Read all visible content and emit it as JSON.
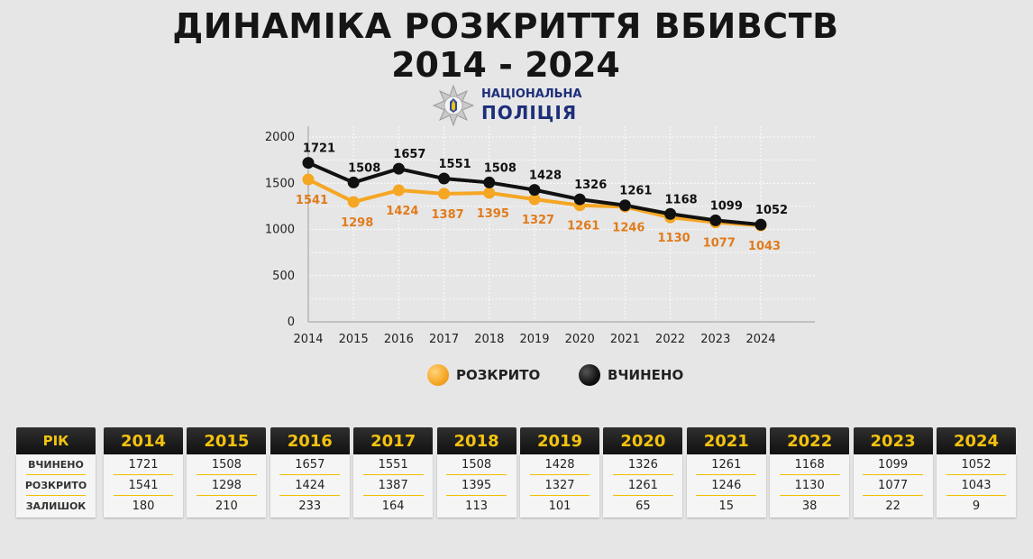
{
  "title": {
    "line1": "ДИНАМІКА РОЗКРИТТЯ ВБИВСТВ",
    "line2": "2014 - 2024"
  },
  "logo": {
    "line1": "НАЦІОНАЛЬНА",
    "line2": "ПОЛІЦІЯ"
  },
  "chart_data": {
    "type": "line",
    "x": [
      "2014",
      "2015",
      "2016",
      "2017",
      "2018",
      "2019",
      "2020",
      "2021",
      "2022",
      "2023",
      "2024"
    ],
    "series": [
      {
        "name": "ВЧИНЕНО",
        "color": "#111111",
        "values": [
          1721,
          1508,
          1657,
          1551,
          1508,
          1428,
          1326,
          1261,
          1168,
          1099,
          1052
        ]
      },
      {
        "name": "РОЗКРИТО",
        "color": "#f5a623",
        "label_color": "#e07b1c",
        "values": [
          1541,
          1298,
          1424,
          1387,
          1395,
          1327,
          1261,
          1246,
          1130,
          1077,
          1043
        ]
      }
    ],
    "yticks": [
      0,
      500,
      1000,
      1500,
      2000
    ],
    "ylim": [
      0,
      2000
    ],
    "grid": true,
    "legend": "bottom"
  },
  "legend": [
    {
      "label": "РОЗКРИТО",
      "color": "#f5a623"
    },
    {
      "label": "ВЧИНЕНО",
      "color": "#111111"
    }
  ],
  "table": {
    "header_label": "РІК",
    "row_labels": [
      "ВЧИНЕНО",
      "РОЗКРИТО",
      "ЗАЛИШОК"
    ],
    "columns": [
      {
        "year": "2014",
        "committed": "1721",
        "solved": "1541",
        "remaining": "180"
      },
      {
        "year": "2015",
        "committed": "1508",
        "solved": "1298",
        "remaining": "210"
      },
      {
        "year": "2016",
        "committed": "1657",
        "solved": "1424",
        "remaining": "233"
      },
      {
        "year": "2017",
        "committed": "1551",
        "solved": "1387",
        "remaining": "164"
      },
      {
        "year": "2018",
        "committed": "1508",
        "solved": "1395",
        "remaining": "113"
      },
      {
        "year": "2019",
        "committed": "1428",
        "solved": "1327",
        "remaining": "101"
      },
      {
        "year": "2020",
        "committed": "1326",
        "solved": "1261",
        "remaining": "65"
      },
      {
        "year": "2021",
        "committed": "1261",
        "solved": "1246",
        "remaining": "15"
      },
      {
        "year": "2022",
        "committed": "1168",
        "solved": "1130",
        "remaining": "38"
      },
      {
        "year": "2023",
        "committed": "1099",
        "solved": "1077",
        "remaining": "22"
      },
      {
        "year": "2024",
        "committed": "1052",
        "solved": "1043",
        "remaining": "9"
      }
    ]
  }
}
